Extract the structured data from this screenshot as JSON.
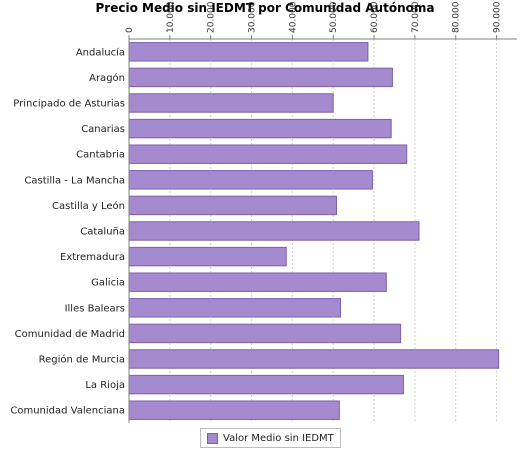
{
  "chart_data": {
    "type": "bar",
    "orientation": "horizontal",
    "title": "Precio Medio sin IEDMT por Comunidad Autónoma",
    "categories": [
      "Andalucía",
      "Aragón",
      "Principado de Asturias",
      "Canarias",
      "Cantabria",
      "Castilla - La Mancha",
      "Castilla y León",
      "Cataluña",
      "Extremadura",
      "Galicia",
      "Illes Balears",
      "Comunidad de Madrid",
      "Región de Murcia",
      "La Rioja",
      "Comunidad Valenciana"
    ],
    "series": [
      {
        "name": "Valor Medio sin IEDMT",
        "color": "#a68ad0",
        "values": [
          58500,
          64500,
          50000,
          64200,
          68000,
          59600,
          50800,
          71000,
          38500,
          63000,
          51800,
          66500,
          90500,
          67200,
          51500
        ]
      }
    ],
    "xlim": [
      0,
      95000
    ],
    "xticks": [
      "0",
      "10.000",
      "20.000",
      "30.000",
      "40.000",
      "50.000",
      "60.000",
      "70.000",
      "80.000",
      "90.000"
    ],
    "tick_position": "top",
    "grid": true,
    "legend_position": "bottom"
  }
}
